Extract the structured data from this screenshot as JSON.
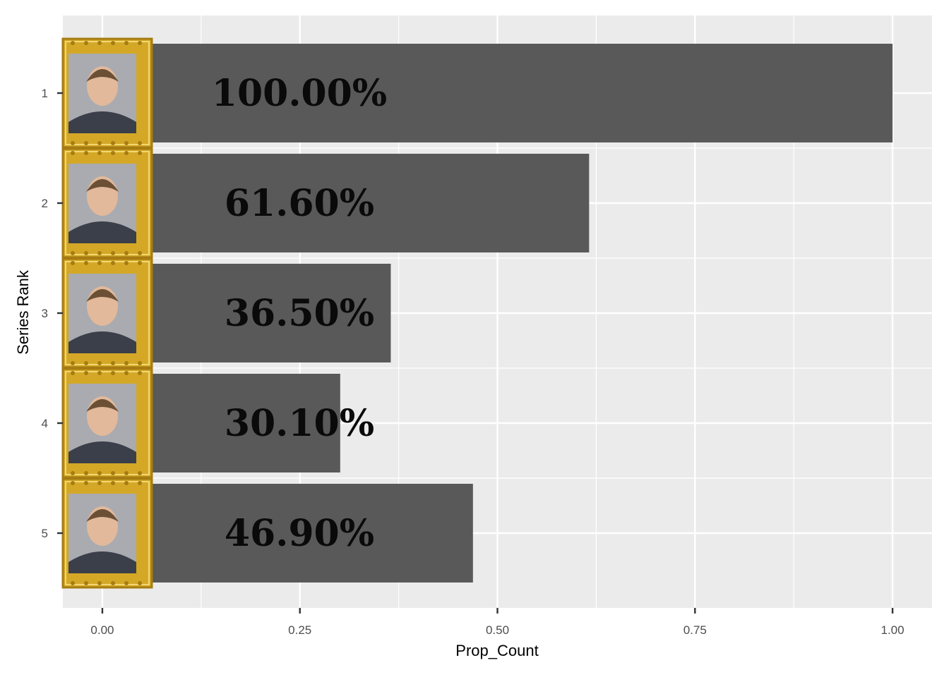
{
  "chart_data": {
    "type": "bar",
    "orientation": "horizontal",
    "title": "",
    "xlabel": "Prop_Count",
    "ylabel": "Series Rank",
    "categories": [
      "1",
      "2",
      "3",
      "4",
      "5"
    ],
    "values": [
      1.0,
      0.616,
      0.365,
      0.301,
      0.469
    ],
    "labels": [
      "100.00%",
      "61.60%",
      "36.50%",
      "30.10%",
      "46.90%"
    ],
    "xlim": [
      -0.05,
      1.05
    ],
    "xticks": [
      0.0,
      0.25,
      0.5,
      0.75,
      1.0
    ],
    "xtick_labels": [
      "0.00",
      "0.25",
      "0.50",
      "0.75",
      "1.00"
    ],
    "grid": true,
    "portraits": [
      "portrait-icon",
      "portrait-icon",
      "portrait-icon",
      "portrait-icon",
      "portrait-icon"
    ],
    "colors": {
      "panel": "#ebebeb",
      "grid": "#ffffff",
      "bar": "#595959",
      "frame": "#d4a826",
      "frame_dark": "#a67c12",
      "photo_bg": "#a9abb0"
    }
  }
}
